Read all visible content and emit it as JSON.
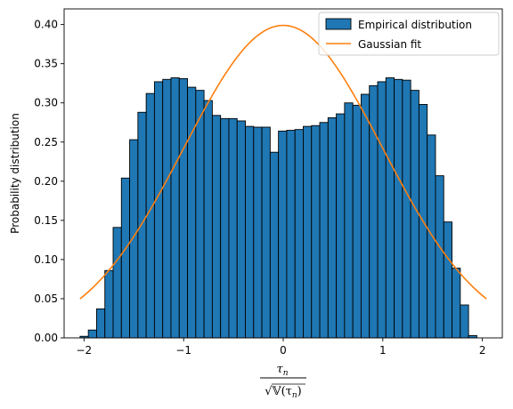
{
  "chart_data": {
    "type": "bar",
    "ylabel": "Probability distribution",
    "xlabel": {
      "numerator": "τ",
      "numerator_sub": "n",
      "denominator": "√𝕍(τ",
      "denominator_sub": "n",
      "denominator_close": ")"
    },
    "xlim": [
      -2.2,
      2.2
    ],
    "ylim": [
      0,
      0.42
    ],
    "x_ticks": [
      -2,
      -1,
      0,
      1,
      2
    ],
    "x_tick_labels": [
      "−2",
      "−1",
      "0",
      "1",
      "2"
    ],
    "y_ticks": [
      0.0,
      0.05,
      0.1,
      0.15,
      0.2,
      0.25,
      0.3,
      0.35,
      0.4
    ],
    "y_tick_labels": [
      "0.00",
      "0.05",
      "0.10",
      "0.15",
      "0.20",
      "0.25",
      "0.30",
      "0.35",
      "0.40"
    ],
    "grid": false,
    "legend_placement": "top-right",
    "histogram": {
      "name": "Empirical distribution",
      "color": "#1f77b4",
      "edge_color": "#000000",
      "bin_start": -2.04,
      "bin_width": 0.083,
      "values": [
        0.002,
        0.01,
        0.037,
        0.086,
        0.141,
        0.204,
        0.253,
        0.288,
        0.312,
        0.327,
        0.33,
        0.332,
        0.331,
        0.32,
        0.316,
        0.303,
        0.284,
        0.28,
        0.28,
        0.277,
        0.27,
        0.269,
        0.269,
        0.237,
        0.264,
        0.265,
        0.266,
        0.27,
        0.271,
        0.275,
        0.281,
        0.286,
        0.3,
        0.297,
        0.311,
        0.322,
        0.327,
        0.332,
        0.33,
        0.329,
        0.316,
        0.298,
        0.259,
        0.207,
        0.148,
        0.089,
        0.042,
        0.003
      ]
    },
    "fit": {
      "name": "Gaussian fit",
      "color": "#ff7f0e",
      "mean": 0,
      "std": 1,
      "x_range": [
        -2.04,
        2.04
      ]
    }
  }
}
